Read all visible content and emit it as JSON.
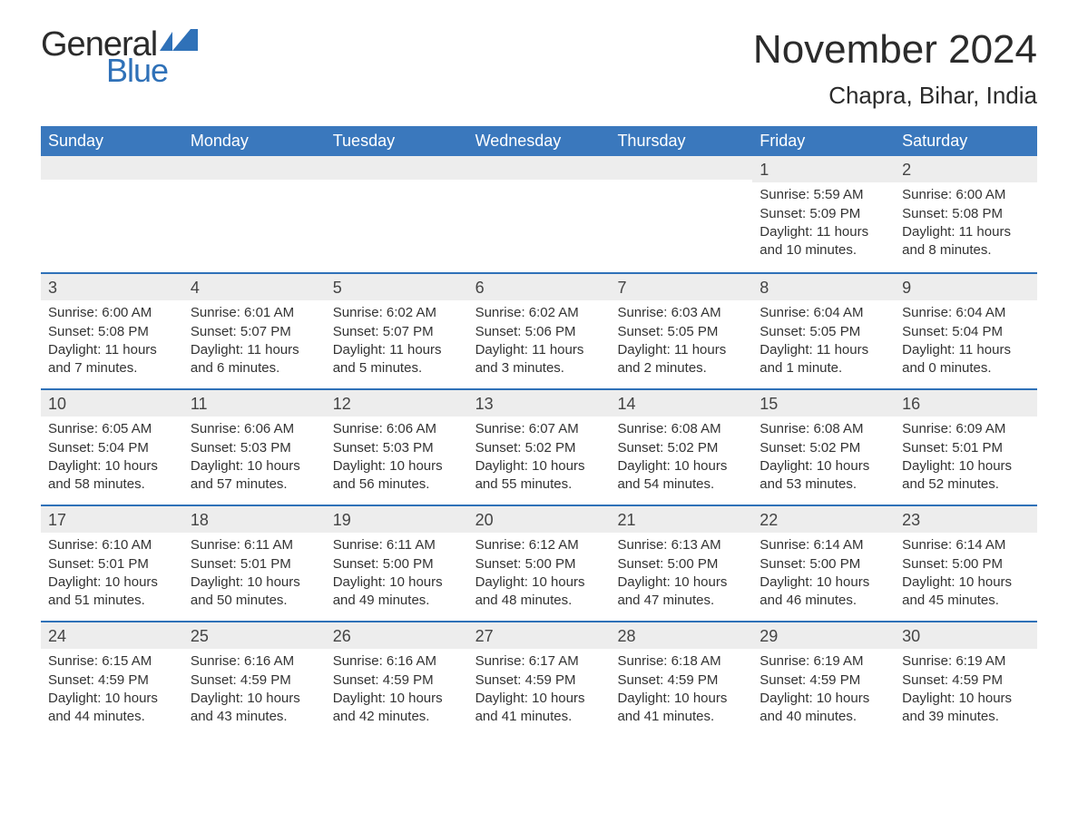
{
  "logo": {
    "text_general": "General",
    "text_blue": "Blue",
    "flag_color": "#2f71b8"
  },
  "header": {
    "month_title": "November 2024",
    "location": "Chapra, Bihar, India"
  },
  "colors": {
    "header_bar": "#3a78bd",
    "week_divider": "#2f71b8",
    "day_number_bg": "#ededed",
    "background": "#ffffff",
    "text": "#333333"
  },
  "weekdays": [
    "Sunday",
    "Monday",
    "Tuesday",
    "Wednesday",
    "Thursday",
    "Friday",
    "Saturday"
  ],
  "labels": {
    "sunrise": "Sunrise:",
    "sunset": "Sunset:",
    "daylight": "Daylight:"
  },
  "weeks": [
    [
      null,
      null,
      null,
      null,
      null,
      {
        "day": "1",
        "sunrise": "5:59 AM",
        "sunset": "5:09 PM",
        "daylight": "11 hours and 10 minutes."
      },
      {
        "day": "2",
        "sunrise": "6:00 AM",
        "sunset": "5:08 PM",
        "daylight": "11 hours and 8 minutes."
      }
    ],
    [
      {
        "day": "3",
        "sunrise": "6:00 AM",
        "sunset": "5:08 PM",
        "daylight": "11 hours and 7 minutes."
      },
      {
        "day": "4",
        "sunrise": "6:01 AM",
        "sunset": "5:07 PM",
        "daylight": "11 hours and 6 minutes."
      },
      {
        "day": "5",
        "sunrise": "6:02 AM",
        "sunset": "5:07 PM",
        "daylight": "11 hours and 5 minutes."
      },
      {
        "day": "6",
        "sunrise": "6:02 AM",
        "sunset": "5:06 PM",
        "daylight": "11 hours and 3 minutes."
      },
      {
        "day": "7",
        "sunrise": "6:03 AM",
        "sunset": "5:05 PM",
        "daylight": "11 hours and 2 minutes."
      },
      {
        "day": "8",
        "sunrise": "6:04 AM",
        "sunset": "5:05 PM",
        "daylight": "11 hours and 1 minute."
      },
      {
        "day": "9",
        "sunrise": "6:04 AM",
        "sunset": "5:04 PM",
        "daylight": "11 hours and 0 minutes."
      }
    ],
    [
      {
        "day": "10",
        "sunrise": "6:05 AM",
        "sunset": "5:04 PM",
        "daylight": "10 hours and 58 minutes."
      },
      {
        "day": "11",
        "sunrise": "6:06 AM",
        "sunset": "5:03 PM",
        "daylight": "10 hours and 57 minutes."
      },
      {
        "day": "12",
        "sunrise": "6:06 AM",
        "sunset": "5:03 PM",
        "daylight": "10 hours and 56 minutes."
      },
      {
        "day": "13",
        "sunrise": "6:07 AM",
        "sunset": "5:02 PM",
        "daylight": "10 hours and 55 minutes."
      },
      {
        "day": "14",
        "sunrise": "6:08 AM",
        "sunset": "5:02 PM",
        "daylight": "10 hours and 54 minutes."
      },
      {
        "day": "15",
        "sunrise": "6:08 AM",
        "sunset": "5:02 PM",
        "daylight": "10 hours and 53 minutes."
      },
      {
        "day": "16",
        "sunrise": "6:09 AM",
        "sunset": "5:01 PM",
        "daylight": "10 hours and 52 minutes."
      }
    ],
    [
      {
        "day": "17",
        "sunrise": "6:10 AM",
        "sunset": "5:01 PM",
        "daylight": "10 hours and 51 minutes."
      },
      {
        "day": "18",
        "sunrise": "6:11 AM",
        "sunset": "5:01 PM",
        "daylight": "10 hours and 50 minutes."
      },
      {
        "day": "19",
        "sunrise": "6:11 AM",
        "sunset": "5:00 PM",
        "daylight": "10 hours and 49 minutes."
      },
      {
        "day": "20",
        "sunrise": "6:12 AM",
        "sunset": "5:00 PM",
        "daylight": "10 hours and 48 minutes."
      },
      {
        "day": "21",
        "sunrise": "6:13 AM",
        "sunset": "5:00 PM",
        "daylight": "10 hours and 47 minutes."
      },
      {
        "day": "22",
        "sunrise": "6:14 AM",
        "sunset": "5:00 PM",
        "daylight": "10 hours and 46 minutes."
      },
      {
        "day": "23",
        "sunrise": "6:14 AM",
        "sunset": "5:00 PM",
        "daylight": "10 hours and 45 minutes."
      }
    ],
    [
      {
        "day": "24",
        "sunrise": "6:15 AM",
        "sunset": "4:59 PM",
        "daylight": "10 hours and 44 minutes."
      },
      {
        "day": "25",
        "sunrise": "6:16 AM",
        "sunset": "4:59 PM",
        "daylight": "10 hours and 43 minutes."
      },
      {
        "day": "26",
        "sunrise": "6:16 AM",
        "sunset": "4:59 PM",
        "daylight": "10 hours and 42 minutes."
      },
      {
        "day": "27",
        "sunrise": "6:17 AM",
        "sunset": "4:59 PM",
        "daylight": "10 hours and 41 minutes."
      },
      {
        "day": "28",
        "sunrise": "6:18 AM",
        "sunset": "4:59 PM",
        "daylight": "10 hours and 41 minutes."
      },
      {
        "day": "29",
        "sunrise": "6:19 AM",
        "sunset": "4:59 PM",
        "daylight": "10 hours and 40 minutes."
      },
      {
        "day": "30",
        "sunrise": "6:19 AM",
        "sunset": "4:59 PM",
        "daylight": "10 hours and 39 minutes."
      }
    ]
  ]
}
